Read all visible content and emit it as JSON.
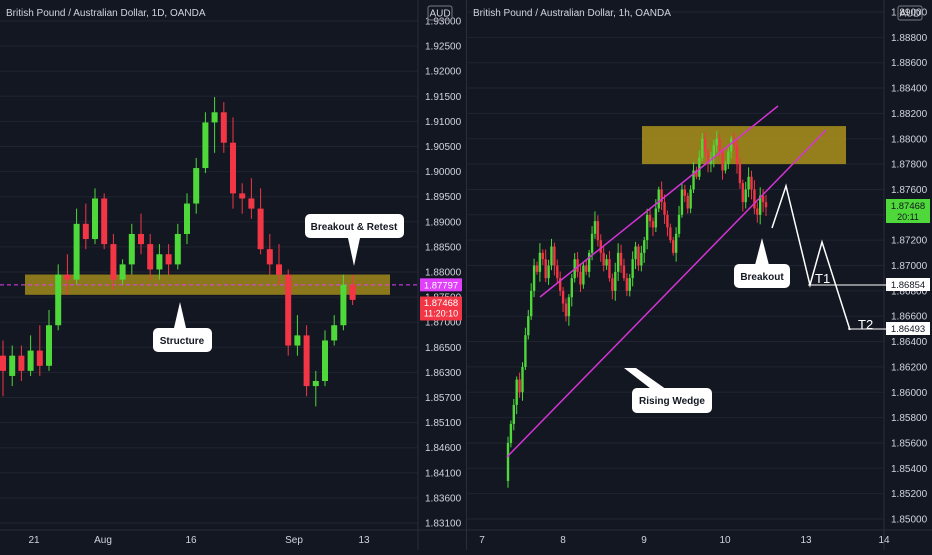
{
  "colors": {
    "background": "#131722",
    "grid": "#1f2430",
    "up": "#4ed839",
    "down": "#f23645",
    "zone": "#b59a1b",
    "wedge": "#cc33cc",
    "axis_text": "#d1d4dc"
  },
  "chart_data": [
    {
      "type": "candlestick",
      "title": "British Pound / Australian Dollar, 1D, OANDA",
      "currency_badge": "AUD",
      "x_ticks": [
        "21",
        "Aug",
        "16",
        "Sep",
        "13"
      ],
      "y_ticks": [
        "1.93000",
        "1.92500",
        "1.92000",
        "1.91500",
        "1.91000",
        "1.90500",
        "1.90000",
        "1.89500",
        "1.89000",
        "1.88500",
        "1.88000",
        "1.87500",
        "1.87000",
        "1.86500",
        "1.86300",
        "1.85700",
        "1.85100",
        "1.84600",
        "1.84100",
        "1.83600",
        "1.83100"
      ],
      "price_labels": {
        "reference": "1.87797",
        "last": "1.87468",
        "countdown": "11:20:10"
      },
      "annotations": [
        "Breakout & Retest",
        "Structure"
      ],
      "price_range": [
        1.831,
        1.93
      ],
      "candles": [
        {
          "o": 1.864,
          "h": 1.867,
          "l": 1.856,
          "c": 1.861
        },
        {
          "o": 1.86,
          "h": 1.866,
          "l": 1.858,
          "c": 1.864
        },
        {
          "o": 1.864,
          "h": 1.866,
          "l": 1.859,
          "c": 1.861
        },
        {
          "o": 1.861,
          "h": 1.868,
          "l": 1.86,
          "c": 1.865
        },
        {
          "o": 1.865,
          "h": 1.87,
          "l": 1.86,
          "c": 1.862
        },
        {
          "o": 1.862,
          "h": 1.873,
          "l": 1.861,
          "c": 1.87
        },
        {
          "o": 1.87,
          "h": 1.882,
          "l": 1.869,
          "c": 1.88
        },
        {
          "o": 1.88,
          "h": 1.884,
          "l": 1.876,
          "c": 1.879
        },
        {
          "o": 1.879,
          "h": 1.893,
          "l": 1.878,
          "c": 1.89
        },
        {
          "o": 1.89,
          "h": 1.894,
          "l": 1.885,
          "c": 1.887
        },
        {
          "o": 1.887,
          "h": 1.897,
          "l": 1.886,
          "c": 1.895
        },
        {
          "o": 1.895,
          "h": 1.896,
          "l": 1.885,
          "c": 1.886
        },
        {
          "o": 1.886,
          "h": 1.888,
          "l": 1.877,
          "c": 1.879
        },
        {
          "o": 1.879,
          "h": 1.883,
          "l": 1.878,
          "c": 1.882
        },
        {
          "o": 1.882,
          "h": 1.89,
          "l": 1.88,
          "c": 1.888
        },
        {
          "o": 1.888,
          "h": 1.892,
          "l": 1.884,
          "c": 1.886
        },
        {
          "o": 1.886,
          "h": 1.888,
          "l": 1.879,
          "c": 1.881
        },
        {
          "o": 1.881,
          "h": 1.886,
          "l": 1.879,
          "c": 1.884
        },
        {
          "o": 1.884,
          "h": 1.886,
          "l": 1.88,
          "c": 1.882
        },
        {
          "o": 1.882,
          "h": 1.89,
          "l": 1.881,
          "c": 1.888
        },
        {
          "o": 1.888,
          "h": 1.896,
          "l": 1.886,
          "c": 1.894
        },
        {
          "o": 1.894,
          "h": 1.903,
          "l": 1.892,
          "c": 1.901
        },
        {
          "o": 1.901,
          "h": 1.912,
          "l": 1.9,
          "c": 1.91
        },
        {
          "o": 1.91,
          "h": 1.915,
          "l": 1.904,
          "c": 1.912
        },
        {
          "o": 1.912,
          "h": 1.914,
          "l": 1.904,
          "c": 1.906
        },
        {
          "o": 1.906,
          "h": 1.911,
          "l": 1.893,
          "c": 1.896
        },
        {
          "o": 1.896,
          "h": 1.898,
          "l": 1.892,
          "c": 1.895
        },
        {
          "o": 1.895,
          "h": 1.899,
          "l": 1.891,
          "c": 1.893
        },
        {
          "o": 1.893,
          "h": 1.897,
          "l": 1.884,
          "c": 1.885
        },
        {
          "o": 1.885,
          "h": 1.888,
          "l": 1.88,
          "c": 1.882
        },
        {
          "o": 1.882,
          "h": 1.886,
          "l": 1.878,
          "c": 1.88
        },
        {
          "o": 1.88,
          "h": 1.881,
          "l": 1.864,
          "c": 1.866
        },
        {
          "o": 1.866,
          "h": 1.872,
          "l": 1.864,
          "c": 1.868
        },
        {
          "o": 1.868,
          "h": 1.87,
          "l": 1.856,
          "c": 1.858
        },
        {
          "o": 1.858,
          "h": 1.861,
          "l": 1.854,
          "c": 1.859
        },
        {
          "o": 1.859,
          "h": 1.869,
          "l": 1.858,
          "c": 1.867
        },
        {
          "o": 1.867,
          "h": 1.872,
          "l": 1.866,
          "c": 1.87
        },
        {
          "o": 1.87,
          "h": 1.88,
          "l": 1.869,
          "c": 1.878
        },
        {
          "o": 1.878,
          "h": 1.88,
          "l": 1.874,
          "c": 1.875
        }
      ],
      "zone": {
        "top": 1.88,
        "bottom": 1.876
      }
    },
    {
      "type": "candlestick",
      "title": "British Pound / Australian Dollar, 1h, OANDA",
      "currency_badge": "AUD",
      "x_ticks": [
        "7",
        "8",
        "9",
        "10",
        "13",
        "14"
      ],
      "y_ticks": [
        "1.89000",
        "1.88800",
        "1.88600",
        "1.88400",
        "1.88200",
        "1.88000",
        "1.87800",
        "1.87600",
        "1.87400",
        "1.87200",
        "1.87000",
        "1.86800",
        "1.86600",
        "1.86400",
        "1.86200",
        "1.86000",
        "1.85800",
        "1.85600",
        "1.85400",
        "1.85200",
        "1.85000"
      ],
      "price_labels": {
        "last": "1.87468",
        "countdown": "20:11",
        "target1": "1.86854",
        "target2": "1.86493"
      },
      "annotations": [
        "Breakout",
        "Rising Wedge",
        "T1",
        "T2"
      ],
      "price_range": [
        1.849,
        1.891
      ],
      "candles_seed_path": [
        1.856,
        1.8575,
        1.859,
        1.861,
        1.86,
        1.862,
        1.8645,
        1.866,
        1.868,
        1.87,
        1.8695,
        1.871,
        1.8705,
        1.869,
        1.87,
        1.8715,
        1.87,
        1.869,
        1.868,
        1.867,
        1.866,
        1.8675,
        1.869,
        1.8705,
        1.8695,
        1.8685,
        1.87,
        1.8695,
        1.871,
        1.8725,
        1.8735,
        1.872,
        1.871,
        1.87,
        1.8705,
        1.869,
        1.868,
        1.8695,
        1.871,
        1.87,
        1.869,
        1.868,
        1.869,
        1.8705,
        1.8715,
        1.87,
        1.871,
        1.872,
        1.874,
        1.8735,
        1.873,
        1.8745,
        1.876,
        1.875,
        1.874,
        1.873,
        1.872,
        1.871,
        1.8725,
        1.874,
        1.876,
        1.8755,
        1.8745,
        1.876,
        1.8775,
        1.877,
        1.8785,
        1.88,
        1.879,
        1.878,
        1.8785,
        1.8795,
        1.88,
        1.879,
        1.8775,
        1.878,
        1.879,
        1.88,
        1.8795,
        1.878,
        1.8765,
        1.875,
        1.876,
        1.877,
        1.876,
        1.8745,
        1.874,
        1.8755,
        1.875,
        1.8746
      ],
      "zone": {
        "top": 1.881,
        "bottom": 1.878
      }
    }
  ]
}
